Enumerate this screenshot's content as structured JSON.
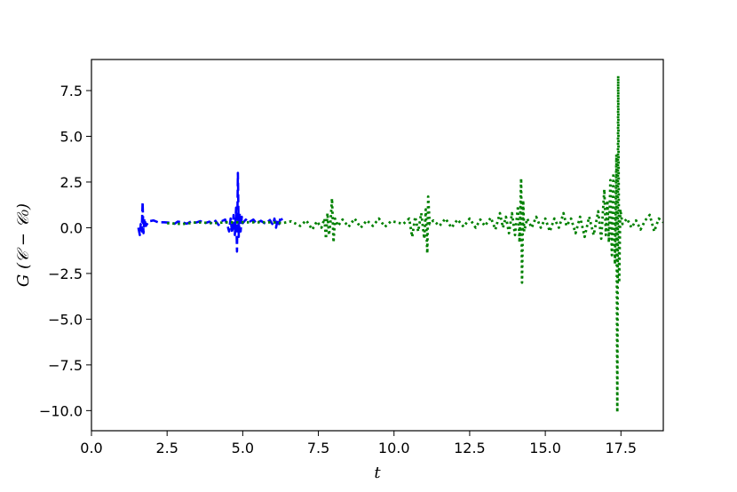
{
  "chart_data": {
    "type": "line",
    "title": "",
    "xlabel": "t",
    "ylabel": "G (𝒞 − 𝒞₀)",
    "xlim": [
      0,
      18.9
    ],
    "ylim": [
      -11.1,
      9.2
    ],
    "grid": false,
    "x_ticks": [
      0,
      2.5,
      5,
      7.5,
      10,
      12.5,
      15,
      17.5
    ],
    "x_tick_labels": [
      "0.0",
      "2.5",
      "5.0",
      "7.5",
      "10.0",
      "12.5",
      "15.0",
      "17.5"
    ],
    "y_ticks": [
      7.5,
      5,
      2.5,
      0,
      -2.5,
      -5,
      -7.5,
      -10
    ],
    "y_tick_labels": [
      "7.5",
      "5.0",
      "2.5",
      "0.0",
      "−2.5",
      "−5.0",
      "−7.5",
      "−10.0"
    ],
    "series": [
      {
        "color": "#0000ff",
        "style": "dashed",
        "points": [
          [
            1.55,
            0.0
          ],
          [
            1.6,
            -0.4
          ],
          [
            1.63,
            0.2
          ],
          [
            1.66,
            -0.2
          ],
          [
            1.69,
            1.4
          ],
          [
            1.72,
            -0.3
          ],
          [
            1.75,
            0.5
          ],
          [
            1.8,
            0.1
          ],
          [
            1.9,
            0.35
          ],
          [
            2.05,
            0.4
          ],
          [
            2.2,
            0.3
          ],
          [
            2.4,
            0.3
          ],
          [
            2.6,
            0.28
          ],
          [
            2.75,
            0.22
          ],
          [
            2.85,
            0.33
          ],
          [
            3.0,
            0.3
          ],
          [
            3.15,
            0.22
          ],
          [
            3.3,
            0.35
          ],
          [
            3.45,
            0.28
          ],
          [
            3.6,
            0.36
          ],
          [
            3.75,
            0.25
          ],
          [
            3.9,
            0.33
          ],
          [
            4.0,
            0.2
          ],
          [
            4.1,
            0.38
          ],
          [
            4.2,
            0.15
          ],
          [
            4.3,
            0.35
          ],
          [
            4.42,
            0.45
          ],
          [
            4.5,
            0.1
          ],
          [
            4.55,
            -0.2
          ],
          [
            4.6,
            0.5
          ],
          [
            4.65,
            -0.3
          ],
          [
            4.7,
            0.7
          ],
          [
            4.74,
            -0.4
          ],
          [
            4.78,
            1.1
          ],
          [
            4.81,
            -1.3
          ],
          [
            4.84,
            3.0
          ],
          [
            4.87,
            -0.5
          ],
          [
            4.9,
            0.8
          ],
          [
            4.93,
            -0.2
          ],
          [
            4.97,
            0.6
          ],
          [
            5.0,
            0.25
          ],
          [
            5.1,
            0.45
          ],
          [
            5.2,
            0.3
          ],
          [
            5.35,
            0.45
          ],
          [
            5.45,
            0.25
          ],
          [
            5.6,
            0.38
          ],
          [
            5.75,
            0.22
          ],
          [
            5.9,
            0.42
          ],
          [
            6.0,
            0.15
          ],
          [
            6.05,
            0.5
          ],
          [
            6.1,
            0.0
          ],
          [
            6.15,
            0.45
          ],
          [
            6.2,
            0.2
          ],
          [
            6.25,
            0.6
          ],
          [
            6.3,
            0.4
          ]
        ]
      },
      {
        "color": "#008000",
        "style": "dotted",
        "points": [
          [
            2.5,
            0.25
          ],
          [
            3.0,
            0.2
          ],
          [
            3.5,
            0.3
          ],
          [
            4.0,
            0.25
          ],
          [
            4.5,
            0.3
          ],
          [
            5.0,
            0.3
          ],
          [
            5.5,
            0.3
          ],
          [
            6.0,
            0.3
          ],
          [
            6.3,
            0.25
          ],
          [
            6.6,
            0.35
          ],
          [
            6.9,
            0.1
          ],
          [
            7.1,
            0.4
          ],
          [
            7.3,
            -0.1
          ],
          [
            7.45,
            0.35
          ],
          [
            7.6,
            0.0
          ],
          [
            7.7,
            0.5
          ],
          [
            7.75,
            -0.6
          ],
          [
            7.8,
            0.8
          ],
          [
            7.85,
            -0.4
          ],
          [
            7.9,
            0.3
          ],
          [
            7.95,
            1.6
          ],
          [
            8.0,
            -0.8
          ],
          [
            8.05,
            0.5
          ],
          [
            8.15,
            0.1
          ],
          [
            8.3,
            0.45
          ],
          [
            8.5,
            0.05
          ],
          [
            8.7,
            0.5
          ],
          [
            8.9,
            0.0
          ],
          [
            9.1,
            0.4
          ],
          [
            9.3,
            0.1
          ],
          [
            9.5,
            0.5
          ],
          [
            9.7,
            0.05
          ],
          [
            9.9,
            0.35
          ],
          [
            10.1,
            0.3
          ],
          [
            10.3,
            0.2
          ],
          [
            10.5,
            0.5
          ],
          [
            10.6,
            -0.5
          ],
          [
            10.7,
            0.6
          ],
          [
            10.8,
            -0.2
          ],
          [
            10.9,
            0.8
          ],
          [
            11.0,
            -0.6
          ],
          [
            11.05,
            1.0
          ],
          [
            11.1,
            -1.4
          ],
          [
            11.13,
            1.7
          ],
          [
            11.18,
            0.2
          ],
          [
            11.3,
            0.4
          ],
          [
            11.5,
            0.1
          ],
          [
            11.7,
            0.5
          ],
          [
            11.9,
            0.0
          ],
          [
            12.1,
            0.45
          ],
          [
            12.3,
            0.05
          ],
          [
            12.5,
            0.5
          ],
          [
            12.7,
            0.0
          ],
          [
            12.85,
            0.45
          ],
          [
            13.0,
            0.1
          ],
          [
            13.2,
            0.55
          ],
          [
            13.35,
            -0.1
          ],
          [
            13.5,
            0.8
          ],
          [
            13.6,
            0.0
          ],
          [
            13.7,
            0.6
          ],
          [
            13.8,
            -0.3
          ],
          [
            13.9,
            0.8
          ],
          [
            14.0,
            -0.4
          ],
          [
            14.1,
            1.2
          ],
          [
            14.15,
            -0.8
          ],
          [
            14.2,
            2.7
          ],
          [
            14.23,
            -3.0
          ],
          [
            14.27,
            1.5
          ],
          [
            14.3,
            -0.2
          ],
          [
            14.4,
            0.5
          ],
          [
            14.55,
            0.0
          ],
          [
            14.7,
            0.6
          ],
          [
            14.85,
            0.0
          ],
          [
            15.0,
            0.5
          ],
          [
            15.15,
            -0.2
          ],
          [
            15.3,
            0.5
          ],
          [
            15.45,
            0.0
          ],
          [
            15.6,
            0.8
          ],
          [
            15.7,
            0.1
          ],
          [
            15.85,
            0.5
          ],
          [
            16.0,
            -0.3
          ],
          [
            16.15,
            0.6
          ],
          [
            16.3,
            -0.5
          ],
          [
            16.45,
            0.6
          ],
          [
            16.6,
            -0.4
          ],
          [
            16.75,
            0.9
          ],
          [
            16.85,
            -0.6
          ],
          [
            16.95,
            2.1
          ],
          [
            17.0,
            -0.4
          ],
          [
            17.05,
            1.5
          ],
          [
            17.1,
            -0.8
          ],
          [
            17.15,
            2.6
          ],
          [
            17.2,
            -1.5
          ],
          [
            17.25,
            3.0
          ],
          [
            17.3,
            -2.0
          ],
          [
            17.35,
            4.0
          ],
          [
            17.38,
            -10.1
          ],
          [
            17.41,
            8.3
          ],
          [
            17.44,
            -3.0
          ],
          [
            17.48,
            1.0
          ],
          [
            17.55,
            0.2
          ],
          [
            17.7,
            0.5
          ],
          [
            17.85,
            0.0
          ],
          [
            18.0,
            0.4
          ],
          [
            18.15,
            -0.1
          ],
          [
            18.3,
            0.4
          ],
          [
            18.45,
            0.7
          ],
          [
            18.6,
            -0.2
          ],
          [
            18.75,
            0.5
          ],
          [
            18.9,
            0.3
          ]
        ]
      }
    ]
  }
}
